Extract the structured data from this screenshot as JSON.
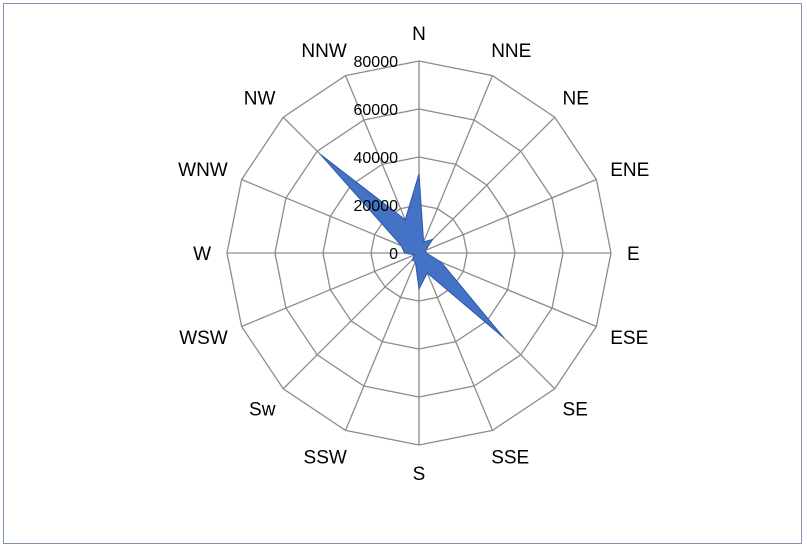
{
  "chart_data": {
    "type": "radar",
    "title": "",
    "categories": [
      "N",
      "NNE",
      "NE",
      "ENE",
      "E",
      "ESE",
      "SE",
      "SSE",
      "S",
      "SSW",
      "Sw",
      "WSW",
      "W",
      "WNW",
      "NW",
      "NNW"
    ],
    "series": [
      {
        "values": [
          33000,
          5000,
          8000,
          3000,
          3000,
          10000,
          50000,
          9000,
          15000,
          4000,
          4000,
          2000,
          6000,
          8000,
          58000,
          15000
        ],
        "fill": "#4472c4",
        "stroke": "#2e59a8"
      }
    ],
    "rlim": [
      0,
      80000
    ],
    "rticks": [
      0,
      20000,
      40000,
      60000,
      80000
    ],
    "tick_labels": [
      "0",
      "20000",
      "40000",
      "60000",
      "80000"
    ],
    "grid": true,
    "legend": "none",
    "colors": {
      "grid": "#8c8c8c",
      "border": "#7f93b0"
    }
  }
}
